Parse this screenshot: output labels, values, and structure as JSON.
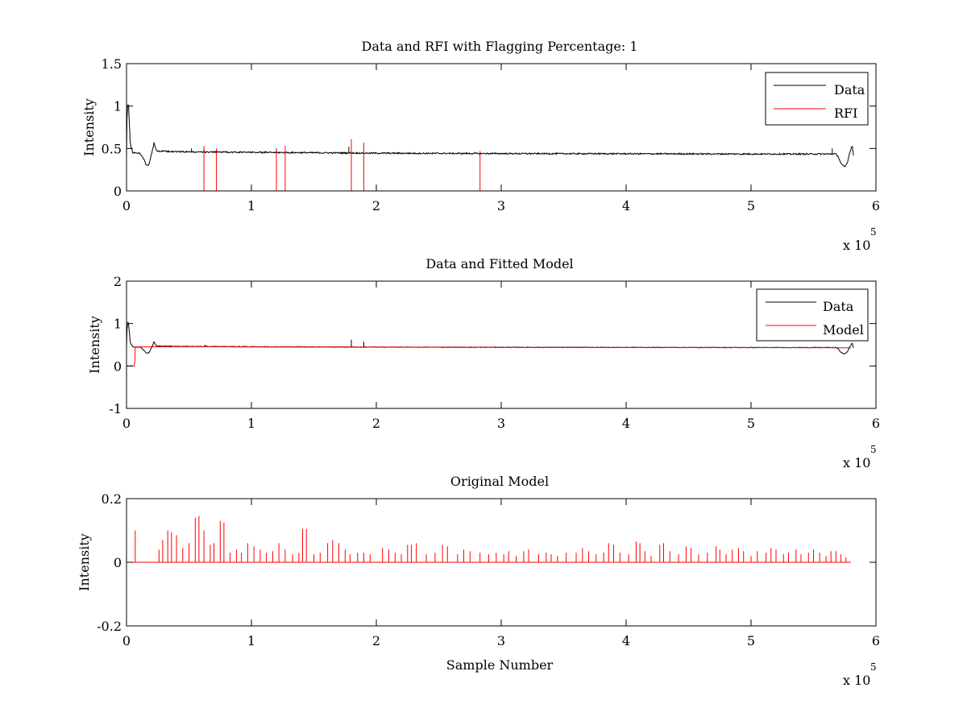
{
  "figure": {
    "background": "#ffffff"
  },
  "chart_data": [
    {
      "id": "rfi",
      "type": "line",
      "title": "Data and RFI with Flagging Percentage: 1",
      "xlabel": "",
      "ylabel": "Intensity",
      "xlim": [
        0,
        6
      ],
      "ylim": [
        0,
        1.5
      ],
      "x_multiplier_label": "x 10",
      "x_multiplier_exponent": "5",
      "xticks": [
        0,
        1,
        2,
        3,
        4,
        5,
        6
      ],
      "xtick_labels": [
        "0",
        "1",
        "2",
        "3",
        "4",
        "5",
        "6"
      ],
      "yticks": [
        0,
        0.5,
        1,
        1.5
      ],
      "ytick_labels": [
        "0",
        "0.5",
        "1",
        "1.5"
      ],
      "legend_position": "top-right",
      "grid": false,
      "series": [
        {
          "name": "Data",
          "color": "#000000",
          "baseline": [
            [
              0,
              0.43
            ],
            [
              0.005,
              0.95
            ],
            [
              0.015,
              1.05
            ],
            [
              0.03,
              0.55
            ],
            [
              0.05,
              0.45
            ],
            [
              0.08,
              0.45
            ],
            [
              0.11,
              0.44
            ],
            [
              0.14,
              0.37
            ],
            [
              0.16,
              0.3
            ],
            [
              0.18,
              0.31
            ],
            [
              0.2,
              0.43
            ],
            [
              0.22,
              0.57
            ],
            [
              0.24,
              0.47
            ],
            [
              0.5,
              0.46
            ],
            [
              1.0,
              0.455
            ],
            [
              1.5,
              0.45
            ],
            [
              2.0,
              0.445
            ],
            [
              3.0,
              0.44
            ],
            [
              4.0,
              0.438
            ],
            [
              5.0,
              0.435
            ],
            [
              5.68,
              0.435
            ],
            [
              5.7,
              0.4
            ],
            [
              5.72,
              0.32
            ],
            [
              5.75,
              0.28
            ],
            [
              5.77,
              0.33
            ],
            [
              5.79,
              0.45
            ],
            [
              5.81,
              0.54
            ],
            [
              5.82,
              0.42
            ]
          ],
          "noise": 0.008,
          "spikes": [
            [
              0.52,
              0.5
            ],
            [
              0.62,
              0.5
            ],
            [
              0.72,
              0.49
            ],
            [
              1.2,
              0.5
            ],
            [
              1.78,
              0.52
            ],
            [
              1.9,
              0.5
            ],
            [
              5.65,
              0.5
            ]
          ]
        },
        {
          "name": "RFI",
          "color": "#ff0000",
          "spikes": [
            [
              0.62,
              0.53
            ],
            [
              0.72,
              0.5
            ],
            [
              1.2,
              0.49
            ],
            [
              1.27,
              0.53
            ],
            [
              1.8,
              0.61
            ],
            [
              1.9,
              0.57
            ],
            [
              2.83,
              0.47
            ]
          ]
        }
      ]
    },
    {
      "id": "model",
      "type": "line",
      "title": "Data and Fitted Model",
      "xlabel": "",
      "ylabel": "Intensity",
      "xlim": [
        0,
        6
      ],
      "ylim": [
        -1,
        2
      ],
      "x_multiplier_label": "x 10",
      "x_multiplier_exponent": "5",
      "xticks": [
        0,
        1,
        2,
        3,
        4,
        5,
        6
      ],
      "xtick_labels": [
        "0",
        "1",
        "2",
        "3",
        "4",
        "5",
        "6"
      ],
      "yticks": [
        -1,
        0,
        1,
        2
      ],
      "ytick_labels": [
        "-1",
        "0",
        "1",
        "2"
      ],
      "legend_position": "top-right",
      "grid": false,
      "series": [
        {
          "name": "Data",
          "color": "#000000",
          "baseline": [
            [
              0,
              0.43
            ],
            [
              0.005,
              0.95
            ],
            [
              0.015,
              1.05
            ],
            [
              0.03,
              0.55
            ],
            [
              0.05,
              0.45
            ],
            [
              0.08,
              0.45
            ],
            [
              0.11,
              0.44
            ],
            [
              0.14,
              0.37
            ],
            [
              0.16,
              0.3
            ],
            [
              0.18,
              0.31
            ],
            [
              0.2,
              0.43
            ],
            [
              0.22,
              0.57
            ],
            [
              0.24,
              0.47
            ],
            [
              0.5,
              0.46
            ],
            [
              1.0,
              0.455
            ],
            [
              1.5,
              0.45
            ],
            [
              2.0,
              0.445
            ],
            [
              3.0,
              0.44
            ],
            [
              4.0,
              0.438
            ],
            [
              5.0,
              0.435
            ],
            [
              5.68,
              0.435
            ],
            [
              5.7,
              0.4
            ],
            [
              5.72,
              0.32
            ],
            [
              5.75,
              0.28
            ],
            [
              5.77,
              0.33
            ],
            [
              5.79,
              0.45
            ],
            [
              5.81,
              0.54
            ],
            [
              5.82,
              0.42
            ]
          ],
          "noise": 0.008,
          "spikes": [
            [
              0.63,
              0.5
            ],
            [
              1.8,
              0.62
            ],
            [
              1.9,
              0.57
            ]
          ]
        },
        {
          "name": "Model",
          "color": "#ff0000",
          "baseline": [
            [
              0,
              0.0
            ],
            [
              0.065,
              0.0
            ],
            [
              0.07,
              0.45
            ],
            [
              0.5,
              0.455
            ],
            [
              1.0,
              0.45
            ],
            [
              2.0,
              0.445
            ],
            [
              3.0,
              0.44
            ],
            [
              4.0,
              0.435
            ],
            [
              5.0,
              0.435
            ],
            [
              5.8,
              0.43
            ]
          ],
          "noise": 0.0,
          "spikes": []
        }
      ]
    },
    {
      "id": "original",
      "type": "line",
      "title": "Original Model",
      "xlabel": "Sample Number",
      "ylabel": "Intensity",
      "xlim": [
        0,
        6
      ],
      "ylim": [
        -0.2,
        0.2
      ],
      "x_multiplier_label": "x 10",
      "x_multiplier_exponent": "5",
      "xticks": [
        0,
        1,
        2,
        3,
        4,
        5,
        6
      ],
      "xtick_labels": [
        "0",
        "1",
        "2",
        "3",
        "4",
        "5",
        "6"
      ],
      "yticks": [
        -0.2,
        0,
        0.2
      ],
      "ytick_labels": [
        "-0.2",
        "0",
        "0.2"
      ],
      "legend_position": "none",
      "grid": false,
      "series": [
        {
          "name": "",
          "color": "#ff0000",
          "baseline": [
            [
              0.0,
              0.0
            ],
            [
              5.8,
              0.0
            ]
          ],
          "noise": 0.0,
          "spikes": [
            [
              0.07,
              0.1
            ],
            [
              0.26,
              0.04
            ],
            [
              0.29,
              0.07
            ],
            [
              0.33,
              0.1
            ],
            [
              0.36,
              0.095
            ],
            [
              0.4,
              0.085
            ],
            [
              0.45,
              0.045
            ],
            [
              0.5,
              0.06
            ],
            [
              0.55,
              0.14
            ],
            [
              0.58,
              0.145
            ],
            [
              0.62,
              0.1
            ],
            [
              0.67,
              0.055
            ],
            [
              0.7,
              0.06
            ],
            [
              0.75,
              0.13
            ],
            [
              0.78,
              0.125
            ],
            [
              0.83,
              0.03
            ],
            [
              0.88,
              0.04
            ],
            [
              0.92,
              0.03
            ],
            [
              0.97,
              0.06
            ],
            [
              1.02,
              0.05
            ],
            [
              1.07,
              0.04
            ],
            [
              1.12,
              0.03
            ],
            [
              1.17,
              0.035
            ],
            [
              1.22,
              0.06
            ],
            [
              1.27,
              0.04
            ],
            [
              1.33,
              0.025
            ],
            [
              1.38,
              0.03
            ],
            [
              1.41,
              0.105
            ],
            [
              1.44,
              0.105
            ],
            [
              1.5,
              0.025
            ],
            [
              1.55,
              0.03
            ],
            [
              1.61,
              0.06
            ],
            [
              1.65,
              0.07
            ],
            [
              1.7,
              0.06
            ],
            [
              1.75,
              0.04
            ],
            [
              1.79,
              0.025
            ],
            [
              1.85,
              0.03
            ],
            [
              1.9,
              0.03
            ],
            [
              1.95,
              0.025
            ],
            [
              2.05,
              0.045
            ],
            [
              2.1,
              0.04
            ],
            [
              2.15,
              0.03
            ],
            [
              2.2,
              0.025
            ],
            [
              2.25,
              0.055
            ],
            [
              2.28,
              0.055
            ],
            [
              2.32,
              0.06
            ],
            [
              2.4,
              0.025
            ],
            [
              2.47,
              0.03
            ],
            [
              2.53,
              0.055
            ],
            [
              2.57,
              0.05
            ],
            [
              2.65,
              0.025
            ],
            [
              2.7,
              0.04
            ],
            [
              2.75,
              0.035
            ],
            [
              2.83,
              0.03
            ],
            [
              2.9,
              0.025
            ],
            [
              2.96,
              0.03
            ],
            [
              3.02,
              0.025
            ],
            [
              3.06,
              0.035
            ],
            [
              3.12,
              0.02
            ],
            [
              3.18,
              0.035
            ],
            [
              3.22,
              0.04
            ],
            [
              3.3,
              0.025
            ],
            [
              3.36,
              0.03
            ],
            [
              3.4,
              0.025
            ],
            [
              3.45,
              0.02
            ],
            [
              3.52,
              0.03
            ],
            [
              3.6,
              0.03
            ],
            [
              3.65,
              0.045
            ],
            [
              3.7,
              0.035
            ],
            [
              3.76,
              0.025
            ],
            [
              3.82,
              0.03
            ],
            [
              3.86,
              0.06
            ],
            [
              3.9,
              0.055
            ],
            [
              3.95,
              0.03
            ],
            [
              4.02,
              0.025
            ],
            [
              4.08,
              0.065
            ],
            [
              4.11,
              0.06
            ],
            [
              4.15,
              0.035
            ],
            [
              4.2,
              0.02
            ],
            [
              4.27,
              0.055
            ],
            [
              4.3,
              0.06
            ],
            [
              4.35,
              0.035
            ],
            [
              4.42,
              0.025
            ],
            [
              4.48,
              0.05
            ],
            [
              4.52,
              0.045
            ],
            [
              4.58,
              0.025
            ],
            [
              4.65,
              0.03
            ],
            [
              4.72,
              0.05
            ],
            [
              4.75,
              0.04
            ],
            [
              4.8,
              0.025
            ],
            [
              4.85,
              0.04
            ],
            [
              4.9,
              0.045
            ],
            [
              4.94,
              0.035
            ],
            [
              5.0,
              0.02
            ],
            [
              5.05,
              0.035
            ],
            [
              5.12,
              0.03
            ],
            [
              5.16,
              0.045
            ],
            [
              5.2,
              0.04
            ],
            [
              5.26,
              0.025
            ],
            [
              5.3,
              0.03
            ],
            [
              5.36,
              0.04
            ],
            [
              5.4,
              0.025
            ],
            [
              5.46,
              0.03
            ],
            [
              5.5,
              0.04
            ],
            [
              5.55,
              0.03
            ],
            [
              5.6,
              0.02
            ],
            [
              5.64,
              0.035
            ],
            [
              5.68,
              0.035
            ],
            [
              5.72,
              0.025
            ],
            [
              5.76,
              0.015
            ]
          ]
        }
      ]
    }
  ]
}
